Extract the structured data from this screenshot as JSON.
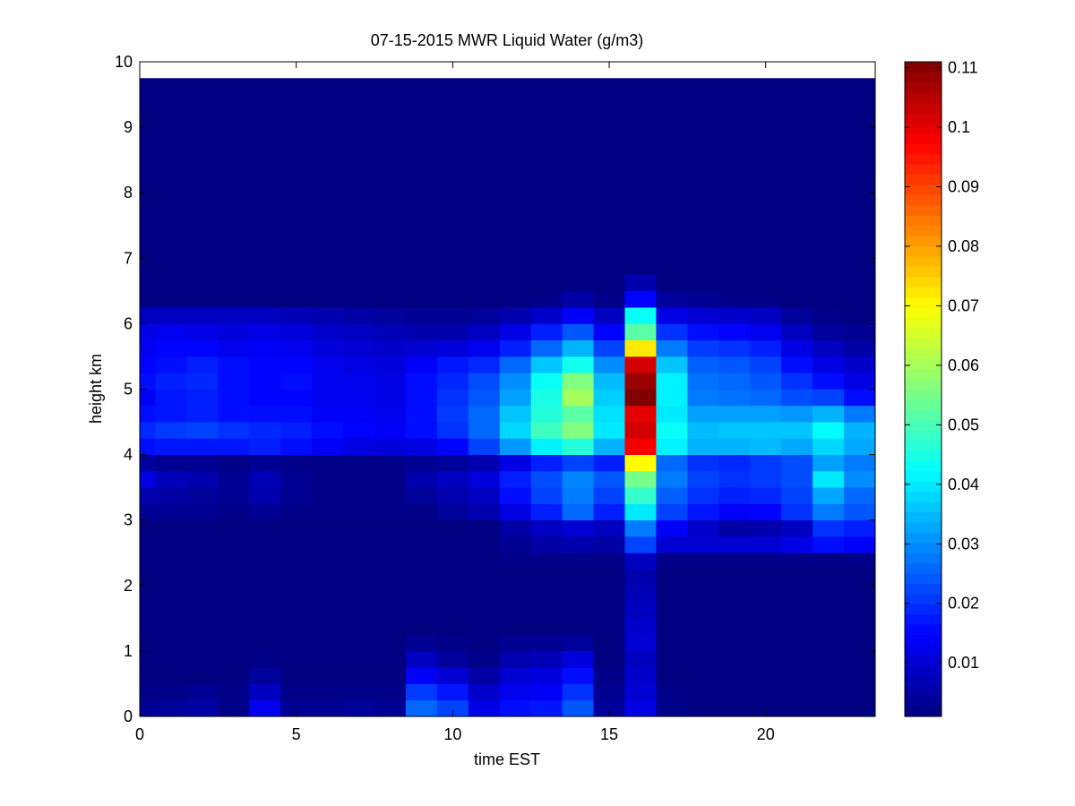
{
  "chart_data": {
    "type": "heatmap",
    "title": "07-15-2015 MWR Liquid Water (g/m3)",
    "xlabel": "time EST",
    "ylabel": "height km",
    "xlim": [
      0,
      23.5
    ],
    "ylim": [
      0,
      10
    ],
    "x_ticks": [
      0,
      5,
      10,
      15,
      20
    ],
    "y_ticks": [
      0,
      1,
      2,
      3,
      4,
      5,
      6,
      7,
      8,
      9,
      10
    ],
    "colorbar": {
      "colormap": "jet",
      "range": [
        0.001,
        0.111
      ],
      "ticks": [
        0.01,
        0.02,
        0.03,
        0.04,
        0.05,
        0.06,
        0.07,
        0.08,
        0.09,
        0.1,
        0.11
      ],
      "tick_labels": [
        "0.01",
        "0.02",
        "0.03",
        "0.04",
        "0.05",
        "0.06",
        "0.07",
        "0.08",
        "0.09",
        "0.1",
        "0.11"
      ]
    },
    "time_bins_hours": [
      0,
      1,
      2,
      3,
      4,
      5,
      6,
      7,
      8,
      9,
      10,
      11,
      12,
      13,
      14,
      15,
      16,
      17,
      18,
      19,
      20,
      21,
      22,
      23
    ],
    "height_bins_km": [
      0,
      0.25,
      0.5,
      0.75,
      1,
      1.25,
      1.5,
      1.75,
      2,
      2.25,
      2.5,
      2.75,
      3,
      3.25,
      3.5,
      3.75,
      4,
      4.25,
      4.5,
      4.75,
      5,
      5.25,
      5.5,
      5.75,
      6,
      6.25,
      6.5
    ],
    "top_km": 9.75,
    "background_value": 0.001,
    "profiles": [
      {
        "t": 0,
        "v": [
          0.003,
          0.002,
          0.001,
          0.001,
          0.001,
          0.001,
          0.001,
          0.001,
          0.001,
          0.001,
          0.001,
          0.001,
          0.003,
          0.006,
          0.012,
          0.004,
          0.016,
          0.019,
          0.016,
          0.014,
          0.016,
          0.015,
          0.013,
          0.012,
          0.008,
          0.001,
          0.001
        ]
      },
      {
        "t": 1,
        "v": [
          0.004,
          0.002,
          0.001,
          0.001,
          0.001,
          0.001,
          0.001,
          0.001,
          0.001,
          0.001,
          0.001,
          0.001,
          0.003,
          0.005,
          0.007,
          0.003,
          0.017,
          0.021,
          0.017,
          0.017,
          0.018,
          0.016,
          0.015,
          0.013,
          0.008,
          0.001,
          0.001
        ]
      },
      {
        "t": 2,
        "v": [
          0.005,
          0.003,
          0.001,
          0.001,
          0.001,
          0.001,
          0.001,
          0.001,
          0.001,
          0.001,
          0.001,
          0.001,
          0.003,
          0.004,
          0.006,
          0.003,
          0.017,
          0.022,
          0.018,
          0.018,
          0.019,
          0.018,
          0.015,
          0.012,
          0.008,
          0.001,
          0.001
        ]
      },
      {
        "t": 3,
        "v": [
          0.002,
          0.002,
          0.001,
          0.001,
          0.001,
          0.001,
          0.001,
          0.001,
          0.001,
          0.001,
          0.001,
          0.001,
          0.002,
          0.003,
          0.003,
          0.002,
          0.017,
          0.02,
          0.016,
          0.016,
          0.016,
          0.016,
          0.013,
          0.011,
          0.008,
          0.001,
          0.001
        ]
      },
      {
        "t": 4,
        "v": [
          0.013,
          0.008,
          0.004,
          0.002,
          0.001,
          0.001,
          0.001,
          0.001,
          0.001,
          0.001,
          0.001,
          0.001,
          0.003,
          0.006,
          0.007,
          0.003,
          0.018,
          0.019,
          0.016,
          0.015,
          0.015,
          0.015,
          0.014,
          0.012,
          0.008,
          0.001,
          0.001
        ]
      },
      {
        "t": 5,
        "v": [
          0.003,
          0.002,
          0.001,
          0.001,
          0.001,
          0.001,
          0.001,
          0.001,
          0.001,
          0.001,
          0.001,
          0.001,
          0.002,
          0.003,
          0.003,
          0.002,
          0.016,
          0.018,
          0.016,
          0.015,
          0.016,
          0.015,
          0.013,
          0.011,
          0.007,
          0.001,
          0.001
        ]
      },
      {
        "t": 6,
        "v": [
          0.003,
          0.002,
          0.001,
          0.001,
          0.001,
          0.001,
          0.001,
          0.001,
          0.001,
          0.001,
          0.001,
          0.001,
          0.002,
          0.002,
          0.002,
          0.002,
          0.014,
          0.016,
          0.014,
          0.013,
          0.013,
          0.013,
          0.011,
          0.009,
          0.006,
          0.001,
          0.001
        ]
      },
      {
        "t": 7,
        "v": [
          0.004,
          0.002,
          0.001,
          0.001,
          0.001,
          0.001,
          0.001,
          0.001,
          0.001,
          0.001,
          0.001,
          0.001,
          0.002,
          0.002,
          0.002,
          0.002,
          0.012,
          0.015,
          0.014,
          0.013,
          0.013,
          0.012,
          0.01,
          0.008,
          0.005,
          0.001,
          0.001
        ]
      },
      {
        "t": 8,
        "v": [
          0.003,
          0.002,
          0.001,
          0.001,
          0.001,
          0.001,
          0.001,
          0.001,
          0.001,
          0.001,
          0.001,
          0.001,
          0.002,
          0.002,
          0.002,
          0.002,
          0.011,
          0.014,
          0.013,
          0.012,
          0.012,
          0.011,
          0.009,
          0.007,
          0.004,
          0.001,
          0.001
        ]
      },
      {
        "t": 9,
        "v": [
          0.026,
          0.021,
          0.014,
          0.008,
          0.003,
          0.001,
          0.001,
          0.001,
          0.001,
          0.001,
          0.001,
          0.001,
          0.002,
          0.004,
          0.006,
          0.003,
          0.012,
          0.016,
          0.016,
          0.016,
          0.016,
          0.014,
          0.01,
          0.006,
          0.003,
          0.001,
          0.001
        ]
      },
      {
        "t": 10,
        "v": [
          0.022,
          0.017,
          0.01,
          0.004,
          0.002,
          0.001,
          0.001,
          0.001,
          0.001,
          0.001,
          0.001,
          0.001,
          0.004,
          0.006,
          0.008,
          0.004,
          0.015,
          0.02,
          0.021,
          0.02,
          0.019,
          0.017,
          0.011,
          0.006,
          0.003,
          0.001,
          0.001
        ]
      },
      {
        "t": 11,
        "v": [
          0.012,
          0.009,
          0.005,
          0.002,
          0.001,
          0.001,
          0.001,
          0.001,
          0.001,
          0.001,
          0.001,
          0.001,
          0.006,
          0.008,
          0.011,
          0.006,
          0.022,
          0.026,
          0.026,
          0.024,
          0.023,
          0.019,
          0.013,
          0.008,
          0.004,
          0.001,
          0.001
        ]
      },
      {
        "t": 12,
        "v": [
          0.016,
          0.013,
          0.01,
          0.006,
          0.003,
          0.001,
          0.001,
          0.001,
          0.001,
          0.002,
          0.003,
          0.005,
          0.012,
          0.016,
          0.018,
          0.012,
          0.031,
          0.038,
          0.036,
          0.032,
          0.03,
          0.026,
          0.018,
          0.012,
          0.006,
          0.001,
          0.001
        ]
      },
      {
        "t": 13,
        "v": [
          0.017,
          0.014,
          0.011,
          0.007,
          0.003,
          0.001,
          0.001,
          0.001,
          0.001,
          0.002,
          0.005,
          0.008,
          0.018,
          0.022,
          0.023,
          0.018,
          0.041,
          0.049,
          0.046,
          0.045,
          0.043,
          0.036,
          0.026,
          0.018,
          0.009,
          0.002,
          0.001
        ]
      },
      {
        "t": 14,
        "v": [
          0.024,
          0.02,
          0.016,
          0.011,
          0.004,
          0.001,
          0.001,
          0.001,
          0.001,
          0.002,
          0.006,
          0.01,
          0.026,
          0.028,
          0.029,
          0.022,
          0.046,
          0.056,
          0.052,
          0.06,
          0.056,
          0.044,
          0.034,
          0.024,
          0.014,
          0.005,
          0.001
        ]
      },
      {
        "t": 15,
        "v": [
          0.004,
          0.003,
          0.002,
          0.001,
          0.001,
          0.001,
          0.001,
          0.001,
          0.001,
          0.002,
          0.005,
          0.008,
          0.018,
          0.022,
          0.024,
          0.018,
          0.034,
          0.04,
          0.039,
          0.037,
          0.035,
          0.03,
          0.022,
          0.015,
          0.008,
          0.002,
          0.001
        ]
      },
      {
        "t": 16,
        "v": [
          0.012,
          0.01,
          0.009,
          0.008,
          0.01,
          0.009,
          0.008,
          0.007,
          0.006,
          0.008,
          0.022,
          0.028,
          0.04,
          0.048,
          0.055,
          0.07,
          0.098,
          0.102,
          0.1,
          0.111,
          0.108,
          0.102,
          0.072,
          0.052,
          0.043,
          0.015,
          0.006
        ]
      },
      {
        "t": 17,
        "v": [
          0.002,
          0.002,
          0.001,
          0.001,
          0.001,
          0.001,
          0.001,
          0.001,
          0.001,
          0.002,
          0.01,
          0.014,
          0.022,
          0.025,
          0.028,
          0.026,
          0.041,
          0.043,
          0.04,
          0.041,
          0.041,
          0.036,
          0.028,
          0.02,
          0.012,
          0.004,
          0.001
        ]
      },
      {
        "t": 18,
        "v": [
          0.001,
          0.001,
          0.001,
          0.001,
          0.001,
          0.001,
          0.001,
          0.001,
          0.001,
          0.002,
          0.01,
          0.009,
          0.017,
          0.02,
          0.022,
          0.02,
          0.034,
          0.035,
          0.032,
          0.028,
          0.027,
          0.025,
          0.021,
          0.016,
          0.01,
          0.003,
          0.001
        ]
      },
      {
        "t": 19,
        "v": [
          0.001,
          0.001,
          0.001,
          0.001,
          0.001,
          0.001,
          0.001,
          0.001,
          0.001,
          0.002,
          0.01,
          0.005,
          0.014,
          0.018,
          0.02,
          0.019,
          0.034,
          0.036,
          0.032,
          0.027,
          0.026,
          0.024,
          0.02,
          0.015,
          0.009,
          0.002,
          0.001
        ]
      },
      {
        "t": 20,
        "v": [
          0.001,
          0.001,
          0.001,
          0.001,
          0.001,
          0.001,
          0.001,
          0.001,
          0.001,
          0.002,
          0.01,
          0.006,
          0.015,
          0.019,
          0.021,
          0.021,
          0.035,
          0.036,
          0.032,
          0.026,
          0.024,
          0.022,
          0.018,
          0.013,
          0.008,
          0.002,
          0.001
        ]
      },
      {
        "t": 21,
        "v": [
          0.001,
          0.001,
          0.001,
          0.001,
          0.001,
          0.001,
          0.001,
          0.001,
          0.001,
          0.002,
          0.012,
          0.008,
          0.02,
          0.022,
          0.023,
          0.023,
          0.033,
          0.036,
          0.031,
          0.023,
          0.02,
          0.016,
          0.012,
          0.008,
          0.004,
          0.001,
          0.001
        ]
      },
      {
        "t": 22,
        "v": [
          0.001,
          0.001,
          0.001,
          0.001,
          0.001,
          0.001,
          0.001,
          0.001,
          0.001,
          0.002,
          0.016,
          0.02,
          0.028,
          0.033,
          0.04,
          0.032,
          0.038,
          0.042,
          0.034,
          0.022,
          0.016,
          0.012,
          0.008,
          0.004,
          0.002,
          0.001,
          0.001
        ]
      },
      {
        "t": 23,
        "v": [
          0.001,
          0.001,
          0.001,
          0.001,
          0.001,
          0.001,
          0.001,
          0.001,
          0.001,
          0.002,
          0.014,
          0.018,
          0.024,
          0.026,
          0.03,
          0.028,
          0.033,
          0.034,
          0.028,
          0.016,
          0.012,
          0.009,
          0.005,
          0.003,
          0.001,
          0.001,
          0.001
        ]
      }
    ]
  }
}
